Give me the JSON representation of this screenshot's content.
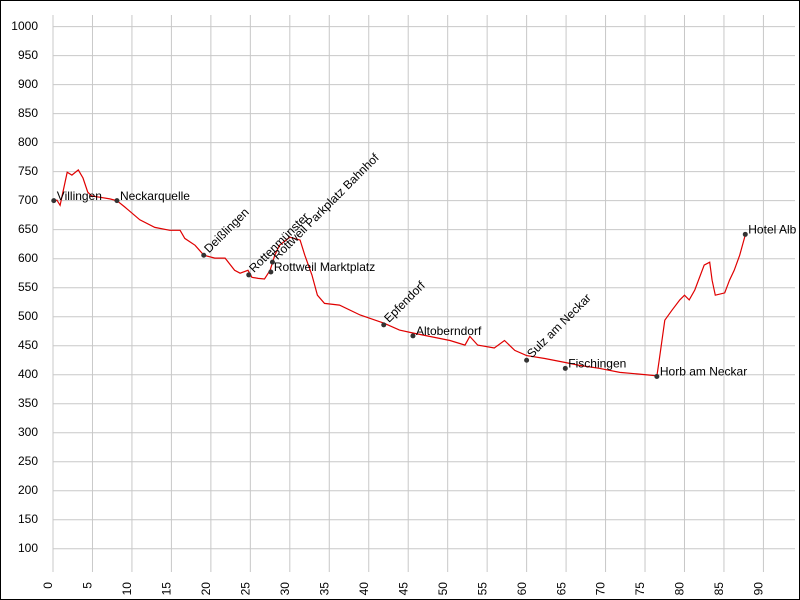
{
  "chart_data": {
    "type": "line",
    "color": "#e00000",
    "grid": true,
    "xlim": [
      0,
      94
    ],
    "ylim": [
      60,
      1020
    ],
    "xticks": [
      0,
      5,
      10,
      15,
      20,
      25,
      30,
      35,
      40,
      45,
      50,
      55,
      60,
      65,
      70,
      75,
      80,
      85,
      90
    ],
    "yticks": [
      100,
      150,
      200,
      250,
      300,
      350,
      400,
      450,
      500,
      550,
      600,
      650,
      700,
      750,
      800,
      850,
      900,
      950,
      1000
    ],
    "x": [
      0,
      0.5,
      0.9,
      1.8,
      2.4,
      3.2,
      3.8,
      4.4,
      4.9,
      5.9,
      7.2,
      8.1,
      9.1,
      11,
      12.9,
      14.8,
      16.1,
      16.7,
      18,
      19.1,
      20.5,
      21.8,
      23,
      23.7,
      24.7,
      25.2,
      26,
      26.8,
      27.5,
      28.1,
      28.7,
      30,
      31.3,
      31.9,
      32.8,
      33.5,
      34.4,
      36.3,
      38.9,
      41.9,
      43.9,
      45.6,
      47.7,
      50.3,
      52.2,
      52.8,
      53.8,
      55.9,
      57.2,
      58.5,
      60,
      62.3,
      64.9,
      66.7,
      69.2,
      71.8,
      74.3,
      76.5,
      76.8,
      77.5,
      78.4,
      79.4,
      80,
      80.6,
      81.3,
      82.5,
      83.2,
      83.5,
      83.9,
      85.1,
      85.7,
      86.3,
      87,
      87.7
    ],
    "values": [
      698,
      701,
      692,
      749,
      744,
      753,
      739,
      715,
      708,
      706,
      703,
      700,
      689,
      667,
      654,
      649,
      649,
      635,
      623,
      606,
      601,
      601,
      580,
      575,
      580,
      568,
      566,
      565,
      580,
      606,
      623,
      637,
      632,
      606,
      572,
      537,
      523,
      520,
      503,
      489,
      477,
      472,
      466,
      459,
      451,
      466,
      451,
      446,
      459,
      442,
      433,
      428,
      421,
      416,
      411,
      404,
      401,
      398,
      425,
      494,
      511,
      529,
      537,
      529,
      546,
      589,
      594,
      563,
      537,
      541,
      563,
      580,
      606,
      641
    ],
    "points": [
      {
        "label": "Villingen",
        "x": 0.1,
        "y": 700,
        "rotated": false
      },
      {
        "label": "Neckarquelle",
        "x": 8.1,
        "y": 700,
        "rotated": false
      },
      {
        "label": "Deißlingen",
        "x": 19.1,
        "y": 606,
        "rotated": true
      },
      {
        "label": "Rottenmünster",
        "x": 24.8,
        "y": 572,
        "rotated": true
      },
      {
        "label": "Rottweil Marktplatz",
        "x": 27.6,
        "y": 577,
        "rotated": false
      },
      {
        "label": "Rottweil Parkplatz Bahnhof",
        "x": 27.8,
        "y": 594,
        "rotated": true
      },
      {
        "label": "Epfendorf",
        "x": 41.9,
        "y": 486,
        "rotated": true
      },
      {
        "label": "Altoberndorf",
        "x": 45.6,
        "y": 467,
        "rotated": false
      },
      {
        "label": "Sulz am Neckar",
        "x": 60,
        "y": 425,
        "rotated": true
      },
      {
        "label": "Fischingen",
        "x": 64.9,
        "y": 411,
        "rotated": false
      },
      {
        "label": "Horb am Neckar",
        "x": 76.5,
        "y": 397,
        "rotated": false
      },
      {
        "label": "Hotel Alb",
        "x": 87.7,
        "y": 642,
        "rotated": false
      }
    ]
  }
}
